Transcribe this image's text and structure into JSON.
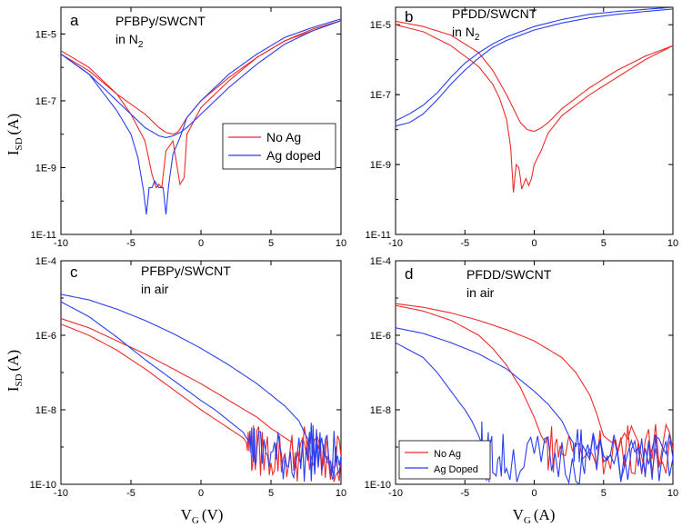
{
  "figure": {
    "ylabel_a": "I",
    "ylabel_c": "I",
    "ylabel_sub": "SD",
    "ylabel_unit": "(A)",
    "xlabel_main": "V",
    "xlabel_sub": "G",
    "xlabel_c_unit": "(V)",
    "xlabel_d_unit": "(A)"
  },
  "chart_data": [
    {
      "id": "a",
      "type": "line",
      "letter": "a",
      "title_line1": "PFBPy/SWCNT",
      "title_line2": "in N",
      "title_sub": "2",
      "xlim": [
        -10,
        10
      ],
      "ylim_log10": [
        -11,
        -4.2
      ],
      "x_ticks": [
        "-10",
        "-5",
        "0",
        "5",
        "10"
      ],
      "y_ticks": [
        "1E-5",
        "1E-7",
        "1E-9",
        "1E-11"
      ],
      "legend": {
        "entries": [
          "No Ag",
          "Ag doped"
        ],
        "position": "right-middle"
      },
      "series": [
        {
          "name": "No Ag",
          "color": "#ee2b2b",
          "sweep": "forward",
          "x": [
            -10,
            -8,
            -6,
            -4,
            -3,
            -2.5,
            -2,
            -1.7,
            -1.5,
            -1.3,
            -1,
            0,
            2,
            4,
            6,
            8,
            10
          ],
          "logy": [
            -5.6,
            -6.1,
            -6.8,
            -7.4,
            -7.8,
            -7.95,
            -8.0,
            -7.95,
            -7.85,
            -7.7,
            -7.5,
            -7.0,
            -6.3,
            -5.7,
            -5.2,
            -4.9,
            -4.6
          ]
        },
        {
          "name": "No Ag",
          "color": "#ee2b2b",
          "sweep": "reverse",
          "x": [
            -10,
            -8,
            -6,
            -5,
            -4,
            -3.5,
            -3.2,
            -3.0,
            -2.8,
            -2.5,
            -2.0,
            -1.5,
            -1.2,
            -1.0,
            0,
            2,
            4,
            6,
            8,
            10
          ],
          "logy": [
            -5.5,
            -6.0,
            -6.8,
            -7.4,
            -8.2,
            -9.2,
            -9.6,
            -9.5,
            -9.6,
            -8.5,
            -8.2,
            -9.5,
            -9.3,
            -8.0,
            -7.2,
            -6.4,
            -5.7,
            -5.2,
            -4.85,
            -4.6
          ]
        },
        {
          "name": "Ag doped",
          "color": "#2a3ff0",
          "sweep": "forward",
          "x": [
            -10,
            -8,
            -6,
            -4,
            -3,
            -2.5,
            -2,
            -1.5,
            -1,
            0,
            2,
            4,
            6,
            8,
            10
          ],
          "logy": [
            -5.6,
            -6.2,
            -7.0,
            -7.8,
            -8.05,
            -8.1,
            -8.05,
            -7.95,
            -7.8,
            -7.4,
            -6.6,
            -5.9,
            -5.3,
            -4.9,
            -4.6
          ]
        },
        {
          "name": "Ag doped",
          "color": "#2a3ff0",
          "sweep": "reverse",
          "x": [
            -10,
            -8,
            -6,
            -5,
            -4.5,
            -4.1,
            -3.9,
            -3.7,
            -3.5,
            -3.3,
            -3.0,
            -2.7,
            -2.5,
            -2.3,
            -2.0,
            -1.5,
            -1,
            0,
            2,
            4,
            6,
            8,
            10
          ],
          "logy": [
            -5.6,
            -6.2,
            -7.3,
            -8.0,
            -8.7,
            -9.7,
            -10.4,
            -9.6,
            -9.6,
            -9.4,
            -9.6,
            -9.6,
            -10.4,
            -9.5,
            -8.6,
            -8.1,
            -7.5,
            -7.0,
            -6.2,
            -5.6,
            -5.1,
            -4.8,
            -4.55
          ]
        }
      ]
    },
    {
      "id": "b",
      "type": "line",
      "letter": "b",
      "title_line1": "PFDD/SWCNT",
      "title_line2": "in N",
      "title_sub": "2",
      "xlim": [
        -10,
        10
      ],
      "ylim_log10": [
        -11,
        -4.5
      ],
      "x_ticks": [
        "-10",
        "-5",
        "0",
        "5",
        "10"
      ],
      "y_ticks": [
        "1E-5",
        "1E-7",
        "1E-9",
        "1E-11"
      ],
      "series": [
        {
          "name": "No Ag",
          "color": "#ee2b2b",
          "sweep": "forward",
          "x": [
            -10,
            -8,
            -6,
            -4,
            -3,
            -2,
            -1.5,
            -1,
            -0.5,
            0,
            0.5,
            1,
            2,
            4,
            6,
            8,
            10
          ],
          "logy": [
            -4.9,
            -5.05,
            -5.3,
            -5.8,
            -6.3,
            -7.0,
            -7.4,
            -7.8,
            -8.0,
            -8.05,
            -7.95,
            -7.8,
            -7.4,
            -6.8,
            -6.3,
            -5.9,
            -5.6
          ]
        },
        {
          "name": "No Ag",
          "color": "#ee2b2b",
          "sweep": "reverse",
          "x": [
            -10,
            -8,
            -6,
            -4,
            -3,
            -2.5,
            -2.0,
            -1.7,
            -1.5,
            -1.3,
            -1.1,
            -0.9,
            -0.6,
            -0.4,
            -0.2,
            0,
            0.5,
            1,
            2,
            4,
            6,
            8,
            10
          ],
          "logy": [
            -5.0,
            -5.2,
            -5.6,
            -6.2,
            -6.7,
            -7.1,
            -7.7,
            -8.5,
            -9.8,
            -9.0,
            -9.1,
            -9.7,
            -9.4,
            -9.6,
            -9.4,
            -9.0,
            -8.6,
            -8.1,
            -7.6,
            -7.0,
            -6.5,
            -6.0,
            -5.6
          ]
        },
        {
          "name": "Ag doped",
          "color": "#2a3ff0",
          "sweep": "forward",
          "x": [
            -10,
            -9,
            -8,
            -7,
            -6,
            -5,
            -4,
            -3,
            -2,
            -1,
            0,
            2,
            4,
            6,
            8,
            10
          ],
          "logy": [
            -7.9,
            -7.8,
            -7.55,
            -7.15,
            -6.7,
            -6.3,
            -5.95,
            -5.65,
            -5.45,
            -5.3,
            -5.15,
            -4.95,
            -4.8,
            -4.7,
            -4.62,
            -4.55
          ]
        },
        {
          "name": "Ag doped",
          "color": "#2a3ff0",
          "sweep": "reverse",
          "x": [
            -10,
            -9,
            -8,
            -7,
            -6,
            -5,
            -4,
            -3,
            -2,
            -1,
            0,
            2,
            4,
            6,
            8,
            10
          ],
          "logy": [
            -7.75,
            -7.55,
            -7.3,
            -6.95,
            -6.5,
            -6.1,
            -5.8,
            -5.55,
            -5.35,
            -5.2,
            -5.05,
            -4.85,
            -4.7,
            -4.62,
            -4.56,
            -4.5
          ]
        }
      ]
    },
    {
      "id": "c",
      "type": "line",
      "letter": "c",
      "title_line1": "PFBPy/SWCNT",
      "title_line2": "in air",
      "title_sub": "",
      "xlim": [
        -10,
        10
      ],
      "ylim_log10": [
        -10,
        -4
      ],
      "x_ticks": [
        "-10",
        "-5",
        "0",
        "5",
        "10"
      ],
      "y_ticks": [
        "1E-4",
        "1E-6",
        "1E-8",
        "1E-10"
      ],
      "series": [
        {
          "name": "No Ag",
          "color": "#ee2b2b",
          "sweep": "forward",
          "x": [
            -10,
            -8,
            -6,
            -4,
            -2,
            0,
            2,
            3,
            3.5,
            4,
            5,
            6,
            7,
            8,
            9,
            10
          ],
          "logy": [
            -5.7,
            -6.0,
            -6.4,
            -6.9,
            -7.45,
            -8.0,
            -8.5,
            -8.75,
            -9.0,
            -9.1,
            -9.2,
            -9.25,
            -9.25,
            -9.25,
            -9.25,
            -9.25
          ]
        },
        {
          "name": "No Ag",
          "color": "#ee2b2b",
          "sweep": "reverse",
          "x": [
            -10,
            -8,
            -6,
            -4,
            -2,
            0,
            2,
            4,
            5,
            6,
            7,
            8,
            9,
            10
          ],
          "logy": [
            -5.55,
            -5.8,
            -6.15,
            -6.5,
            -6.9,
            -7.3,
            -7.75,
            -8.2,
            -8.5,
            -8.75,
            -9.0,
            -9.2,
            -9.25,
            -9.25
          ]
        },
        {
          "name": "Ag doped",
          "color": "#2a3ff0",
          "sweep": "forward",
          "x": [
            -10,
            -8,
            -6,
            -4,
            -2,
            0,
            1,
            2,
            3,
            3.5,
            4,
            5,
            6,
            7,
            8,
            9,
            10
          ],
          "logy": [
            -5.1,
            -5.5,
            -6.05,
            -6.65,
            -7.2,
            -7.75,
            -8.0,
            -8.3,
            -8.6,
            -8.9,
            -9.1,
            -9.2,
            -9.25,
            -9.25,
            -9.25,
            -9.25,
            -9.25
          ]
        },
        {
          "name": "Ag doped",
          "color": "#2a3ff0",
          "sweep": "reverse",
          "x": [
            -10,
            -8,
            -6,
            -4,
            -2,
            0,
            2,
            4,
            6,
            7,
            7.5,
            8,
            9,
            10
          ],
          "logy": [
            -4.9,
            -5.05,
            -5.3,
            -5.6,
            -5.95,
            -6.35,
            -6.8,
            -7.3,
            -7.9,
            -8.3,
            -8.7,
            -9.0,
            -9.2,
            -9.25
          ]
        }
      ]
    },
    {
      "id": "d",
      "type": "line",
      "letter": "d",
      "title_line1": "PFDD/SWCNT",
      "title_line2": "in air",
      "title_sub": "",
      "xlim": [
        -10,
        10
      ],
      "ylim_log10": [
        -10,
        -4
      ],
      "x_ticks": [
        "-10",
        "-5",
        "0",
        "5",
        "10"
      ],
      "y_ticks": [
        "1E-4",
        "1E-6",
        "1E-8",
        "1E-10"
      ],
      "legend": {
        "entries": [
          "No Ag",
          "Ag Doped"
        ],
        "position": "bottom-left"
      },
      "series": [
        {
          "name": "No Ag",
          "color": "#ee2b2b",
          "sweep": "forward",
          "x": [
            -10,
            -8,
            -6,
            -4,
            -3,
            -2,
            -1,
            -0.5,
            0,
            0.5,
            1,
            2,
            4,
            6,
            8,
            10
          ],
          "logy": [
            -5.2,
            -5.35,
            -5.6,
            -6.0,
            -6.35,
            -6.8,
            -7.4,
            -7.8,
            -8.2,
            -8.7,
            -9.0,
            -9.05,
            -9.05,
            -9.05,
            -9.05,
            -9.05
          ]
        },
        {
          "name": "No Ag",
          "color": "#ee2b2b",
          "sweep": "reverse",
          "x": [
            -10,
            -8,
            -6,
            -4,
            -2,
            0,
            2,
            3,
            4,
            4.5,
            5,
            6,
            8,
            10
          ],
          "logy": [
            -5.15,
            -5.25,
            -5.4,
            -5.6,
            -5.85,
            -6.15,
            -6.6,
            -7.0,
            -7.6,
            -8.1,
            -8.7,
            -9.0,
            -9.05,
            -9.05
          ]
        },
        {
          "name": "Ag Doped",
          "color": "#2a3ff0",
          "sweep": "forward",
          "x": [
            -10,
            -8,
            -7,
            -6,
            -5,
            -4.5,
            -4,
            -3.7,
            -3.5,
            -3,
            -2,
            0,
            2,
            4,
            6,
            8,
            10
          ],
          "logy": [
            -6.2,
            -6.6,
            -7.0,
            -7.5,
            -8.0,
            -8.3,
            -8.7,
            -9.0,
            -9.2,
            -9.3,
            -9.3,
            -9.3,
            -9.3,
            -9.3,
            -9.3,
            -9.3,
            -9.3
          ]
        },
        {
          "name": "Ag Doped",
          "color": "#2a3ff0",
          "sweep": "reverse",
          "x": [
            -10,
            -8,
            -6,
            -4,
            -2,
            0,
            1,
            2,
            2.5,
            3,
            4,
            6,
            8,
            10
          ],
          "logy": [
            -5.8,
            -5.95,
            -6.2,
            -6.5,
            -6.9,
            -7.5,
            -7.85,
            -8.3,
            -8.7,
            -9.0,
            -9.2,
            -9.3,
            -9.3,
            -9.3
          ]
        }
      ]
    }
  ]
}
